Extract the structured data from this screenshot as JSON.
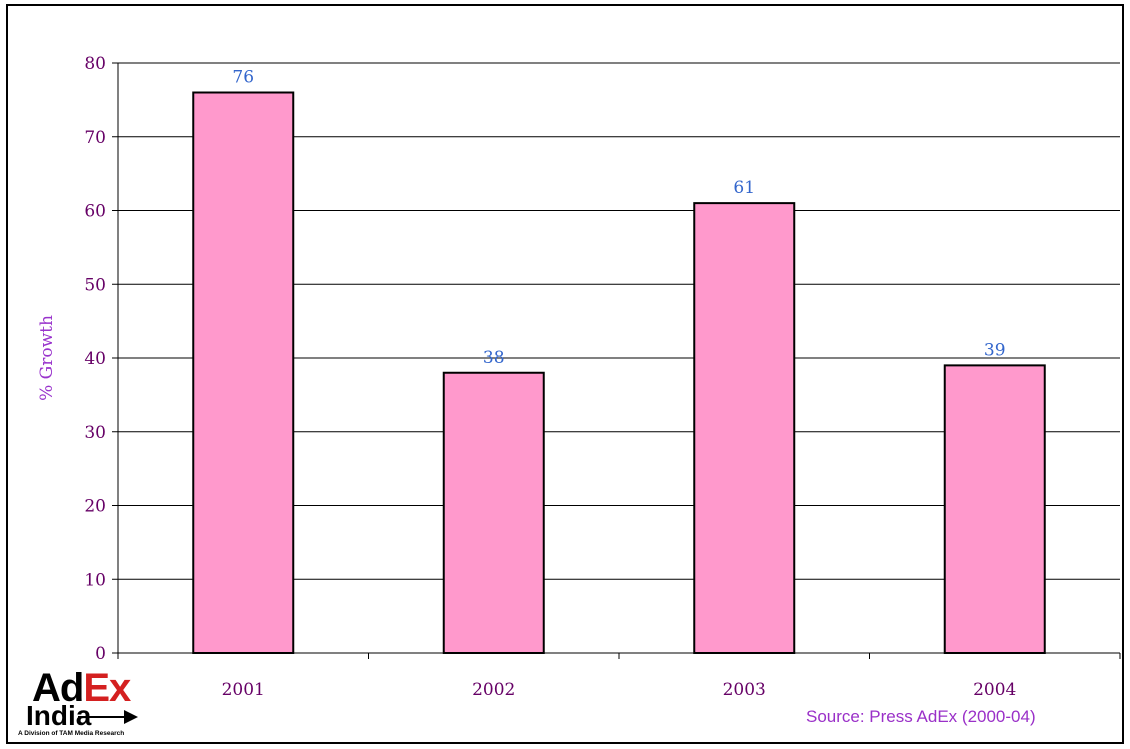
{
  "chart_data": {
    "type": "bar",
    "categories": [
      "2001",
      "2002",
      "2003",
      "2004"
    ],
    "values": [
      76,
      38,
      61,
      39
    ],
    "data_labels": [
      "76",
      "38",
      "61",
      "39"
    ],
    "title": "",
    "xlabel": "",
    "ylabel": "% Growth",
    "ylim": [
      0,
      80
    ],
    "yticks": [
      0,
      10,
      20,
      30,
      40,
      50,
      60,
      70,
      80
    ],
    "grid": true,
    "colors": {
      "bar_fill": "#ff99cc",
      "bar_stroke": "#000000",
      "tick_label": "#660066",
      "data_label": "#3366cc",
      "ylabel": "#9933cc"
    }
  },
  "logo": {
    "ad": "Ad",
    "ex": "Ex",
    "india": "India",
    "tagline": "A Division of TAM Media Research"
  },
  "source": "Source: Press AdEx (2000-04)"
}
